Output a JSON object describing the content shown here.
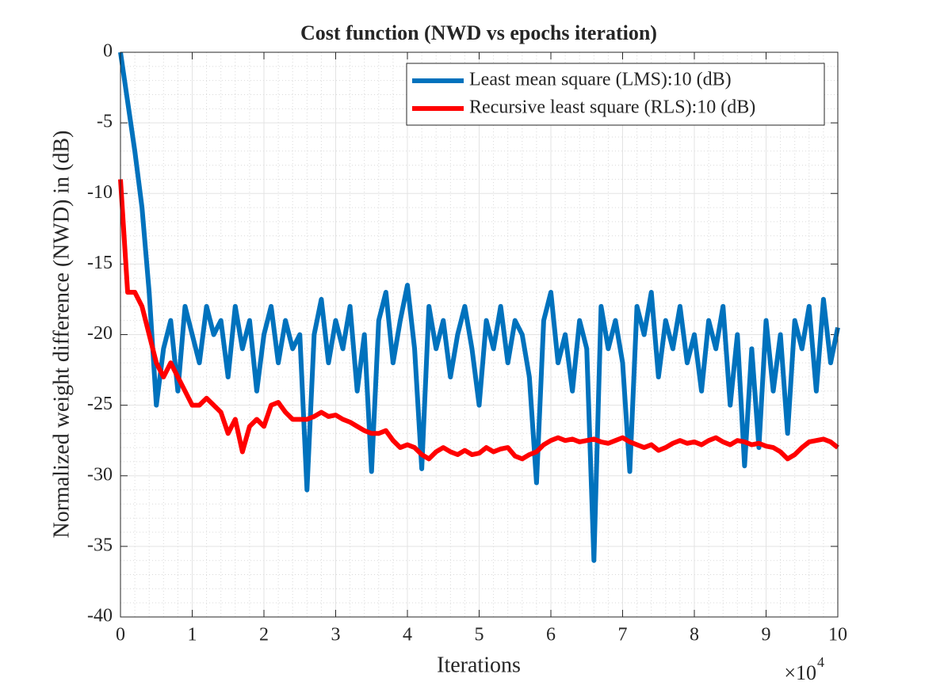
{
  "chart_data": {
    "type": "line",
    "title": "Cost function (NWD vs epochs iteration)",
    "xlabel": "Iterations",
    "ylabel": "Normalized weight difference (NWD) in (dB)",
    "x_multiplier": {
      "base": "×10",
      "exponent": "4"
    },
    "xlim": [
      0,
      10
    ],
    "ylim": [
      -40,
      0
    ],
    "xticks": [
      0,
      1,
      2,
      3,
      4,
      5,
      6,
      7,
      8,
      9,
      10
    ],
    "yticks": [
      -40,
      -35,
      -30,
      -25,
      -20,
      -15,
      -10,
      -5,
      0
    ],
    "grid": true,
    "minor_grid": true,
    "legend_position": "northeast",
    "x": [
      0,
      0.1,
      0.2,
      0.3,
      0.4,
      0.5,
      0.6,
      0.7,
      0.8,
      0.9,
      1,
      1.1,
      1.2,
      1.3,
      1.4,
      1.5,
      1.6,
      1.7,
      1.8,
      1.9,
      2,
      2.1,
      2.2,
      2.3,
      2.4,
      2.5,
      2.6,
      2.7,
      2.8,
      2.9,
      3,
      3.1,
      3.2,
      3.3,
      3.4,
      3.5,
      3.6,
      3.7,
      3.8,
      3.9,
      4,
      4.1,
      4.2,
      4.3,
      4.4,
      4.5,
      4.6,
      4.7,
      4.8,
      4.9,
      5,
      5.1,
      5.2,
      5.3,
      5.4,
      5.5,
      5.6,
      5.7,
      5.8,
      5.9,
      6,
      6.1,
      6.2,
      6.3,
      6.4,
      6.5,
      6.6,
      6.7,
      6.8,
      6.9,
      7,
      7.1,
      7.2,
      7.3,
      7.4,
      7.5,
      7.6,
      7.7,
      7.8,
      7.9,
      8,
      8.1,
      8.2,
      8.3,
      8.4,
      8.5,
      8.6,
      8.7,
      8.8,
      8.9,
      9,
      9.1,
      9.2,
      9.3,
      9.4,
      9.5,
      9.6,
      9.7,
      9.8,
      9.9,
      10
    ],
    "series": [
      {
        "name": "Least mean square (LMS):10 (dB)",
        "color": "#0072bd",
        "values": [
          0,
          -3.5,
          -7,
          -11,
          -17,
          -25,
          -21,
          -19,
          -24,
          -18,
          -20,
          -22,
          -18,
          -20,
          -19,
          -23,
          -18,
          -21,
          -19,
          -24,
          -20,
          -18,
          -22,
          -19,
          -21,
          -20,
          -31,
          -20,
          -17.5,
          -22,
          -19,
          -21,
          -18,
          -24,
          -20,
          -29.7,
          -19,
          -17,
          -22,
          -19,
          -16.5,
          -21,
          -29.5,
          -18,
          -21,
          -19,
          -23,
          -20,
          -18,
          -21,
          -25,
          -19,
          -21,
          -18,
          -22,
          -19,
          -20,
          -23,
          -30.5,
          -19,
          -17,
          -22,
          -20,
          -24,
          -19,
          -21,
          -36,
          -18,
          -21,
          -19,
          -22,
          -29.7,
          -18,
          -20,
          -17,
          -23,
          -19,
          -21,
          -18,
          -22,
          -20,
          -24,
          -19,
          -21,
          -18,
          -25,
          -20,
          -29.3,
          -21,
          -28,
          -19,
          -24,
          -20,
          -27,
          -19,
          -21,
          -18,
          -24,
          -17.5,
          -22,
          -19.5
        ]
      },
      {
        "name": "Recursive least square (RLS):10 (dB)",
        "color": "#ff0000",
        "values": [
          -9,
          -17,
          -17,
          -18,
          -20,
          -22,
          -23,
          -22,
          -23,
          -24,
          -25,
          -25,
          -24.5,
          -25,
          -25.5,
          -27,
          -26,
          -28.3,
          -26.5,
          -26,
          -26.5,
          -25,
          -24.8,
          -25.5,
          -26,
          -26,
          -26,
          -25.8,
          -25.5,
          -25.8,
          -25.7,
          -26,
          -26.2,
          -26.5,
          -26.8,
          -27,
          -27,
          -26.8,
          -27.5,
          -28,
          -27.8,
          -28,
          -28.5,
          -28.8,
          -28.3,
          -28,
          -28.3,
          -28.5,
          -28.2,
          -28.5,
          -28.4,
          -28,
          -28.3,
          -28.1,
          -28,
          -28.6,
          -28.8,
          -28.5,
          -28.3,
          -27.8,
          -27.5,
          -27.3,
          -27.5,
          -27.4,
          -27.6,
          -27.5,
          -27.4,
          -27.6,
          -27.7,
          -27.5,
          -27.3,
          -27.6,
          -27.8,
          -28,
          -27.8,
          -28.2,
          -28,
          -27.7,
          -27.5,
          -27.7,
          -27.6,
          -27.8,
          -27.5,
          -27.3,
          -27.6,
          -27.8,
          -27.5,
          -27.6,
          -27.8,
          -27.7,
          -27.9,
          -28,
          -28.3,
          -28.8,
          -28.5,
          -28,
          -27.6,
          -27.5,
          -27.4,
          -27.6,
          -28
        ]
      }
    ]
  }
}
